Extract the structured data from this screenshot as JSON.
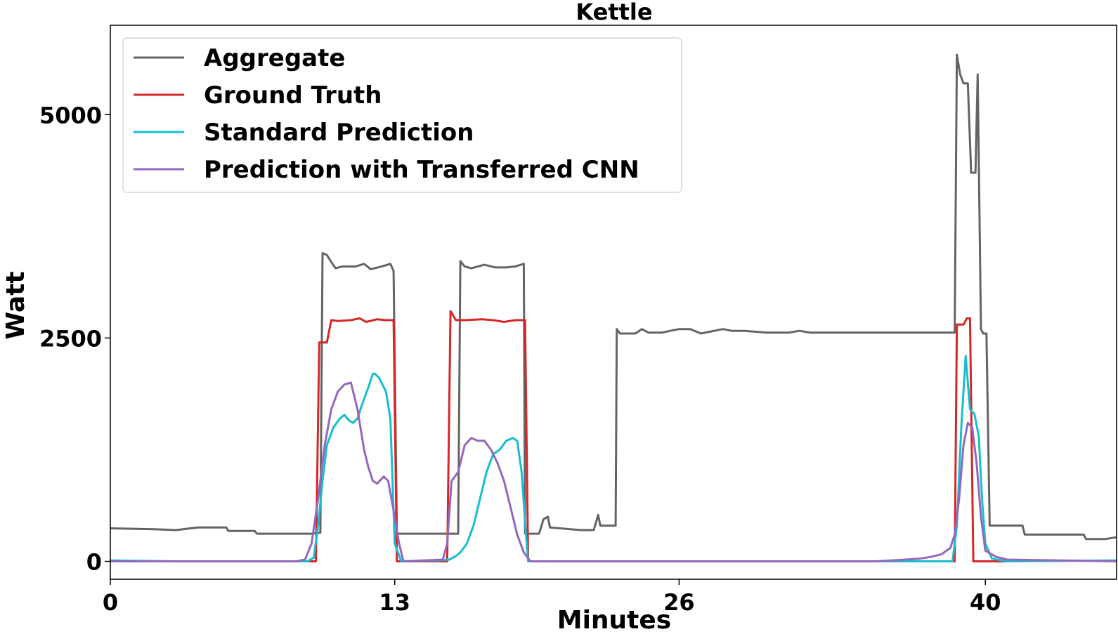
{
  "chart_data": {
    "type": "line",
    "title": "Kettle",
    "xlabel": "Minutes",
    "ylabel": "Watt",
    "xlim": [
      0,
      46
    ],
    "ylim": [
      -200,
      6000
    ],
    "xticks": [
      0,
      13,
      26,
      40
    ],
    "yticks": [
      0,
      2500,
      5000
    ],
    "legend_position": "top-left",
    "grid": false,
    "series": [
      {
        "name": "Aggregate",
        "color": "#646464",
        "points": [
          [
            0,
            370
          ],
          [
            2,
            360
          ],
          [
            3,
            350
          ],
          [
            4,
            380
          ],
          [
            5.3,
            380
          ],
          [
            5.4,
            340
          ],
          [
            6.6,
            340
          ],
          [
            6.7,
            310
          ],
          [
            9.2,
            310
          ],
          [
            9.6,
            320
          ],
          [
            9.7,
            3450
          ],
          [
            9.9,
            3430
          ],
          [
            10.1,
            3350
          ],
          [
            10.3,
            3280
          ],
          [
            10.6,
            3300
          ],
          [
            11.2,
            3300
          ],
          [
            11.6,
            3330
          ],
          [
            11.9,
            3270
          ],
          [
            12.4,
            3300
          ],
          [
            12.8,
            3330
          ],
          [
            12.95,
            3250
          ],
          [
            13.1,
            310
          ],
          [
            15.2,
            310
          ],
          [
            15.9,
            310
          ],
          [
            16.0,
            3360
          ],
          [
            16.2,
            3300
          ],
          [
            16.5,
            3280
          ],
          [
            17.1,
            3320
          ],
          [
            17.6,
            3290
          ],
          [
            18.1,
            3290
          ],
          [
            18.5,
            3300
          ],
          [
            18.9,
            3330
          ],
          [
            18.96,
            310
          ],
          [
            19.6,
            310
          ],
          [
            19.8,
            470
          ],
          [
            20.0,
            500
          ],
          [
            20.1,
            380
          ],
          [
            21.5,
            350
          ],
          [
            22.1,
            350
          ],
          [
            22.3,
            520
          ],
          [
            22.4,
            400
          ],
          [
            23.1,
            400
          ],
          [
            23.15,
            2600
          ],
          [
            23.3,
            2550
          ],
          [
            24.0,
            2550
          ],
          [
            24.3,
            2600
          ],
          [
            24.6,
            2560
          ],
          [
            25.2,
            2560
          ],
          [
            25.6,
            2580
          ],
          [
            26.0,
            2600
          ],
          [
            26.5,
            2600
          ],
          [
            27.0,
            2550
          ],
          [
            28.0,
            2600
          ],
          [
            28.4,
            2580
          ],
          [
            29.0,
            2580
          ],
          [
            30.0,
            2560
          ],
          [
            31.0,
            2560
          ],
          [
            31.5,
            2580
          ],
          [
            32.0,
            2560
          ],
          [
            33.0,
            2560
          ],
          [
            34.0,
            2560
          ],
          [
            35.0,
            2560
          ],
          [
            36.0,
            2560
          ],
          [
            37.0,
            2560
          ],
          [
            37.8,
            2560
          ],
          [
            38.6,
            2560
          ],
          [
            38.7,
            5670
          ],
          [
            38.85,
            5450
          ],
          [
            39.0,
            5350
          ],
          [
            39.2,
            5350
          ],
          [
            39.35,
            4350
          ],
          [
            39.55,
            4350
          ],
          [
            39.65,
            5450
          ],
          [
            39.8,
            2600
          ],
          [
            39.9,
            2550
          ],
          [
            40.05,
            2550
          ],
          [
            40.2,
            400
          ],
          [
            41.0,
            400
          ],
          [
            41.7,
            400
          ],
          [
            41.8,
            300
          ],
          [
            43.0,
            300
          ],
          [
            44.0,
            300
          ],
          [
            44.5,
            300
          ],
          [
            44.6,
            250
          ],
          [
            45.5,
            250
          ],
          [
            46.0,
            270
          ]
        ]
      },
      {
        "name": "Ground Truth",
        "color": "#d62728",
        "points": [
          [
            0,
            0
          ],
          [
            9.4,
            0
          ],
          [
            9.55,
            2450
          ],
          [
            9.9,
            2450
          ],
          [
            10.1,
            2700
          ],
          [
            10.4,
            2690
          ],
          [
            11.0,
            2700
          ],
          [
            11.4,
            2720
          ],
          [
            11.7,
            2680
          ],
          [
            12.2,
            2710
          ],
          [
            12.6,
            2700
          ],
          [
            12.95,
            2700
          ],
          [
            13.1,
            0
          ],
          [
            15.4,
            0
          ],
          [
            15.55,
            2800
          ],
          [
            15.8,
            2700
          ],
          [
            16.2,
            2700
          ],
          [
            17.0,
            2710
          ],
          [
            17.5,
            2700
          ],
          [
            18.0,
            2680
          ],
          [
            18.5,
            2700
          ],
          [
            18.96,
            2700
          ],
          [
            19.1,
            0
          ],
          [
            38.6,
            0
          ],
          [
            38.7,
            2650
          ],
          [
            39.0,
            2650
          ],
          [
            39.15,
            2720
          ],
          [
            39.3,
            2720
          ],
          [
            39.45,
            0
          ],
          [
            41.5,
            0
          ]
        ]
      },
      {
        "name": "Standard Prediction",
        "color": "#17becf",
        "points": [
          [
            0,
            10
          ],
          [
            3,
            0
          ],
          [
            6,
            0
          ],
          [
            8,
            0
          ],
          [
            9.0,
            0
          ],
          [
            9.3,
            40
          ],
          [
            9.5,
            400
          ],
          [
            9.7,
            900
          ],
          [
            9.9,
            1300
          ],
          [
            10.2,
            1500
          ],
          [
            10.5,
            1600
          ],
          [
            10.7,
            1640
          ],
          [
            10.9,
            1580
          ],
          [
            11.1,
            1550
          ],
          [
            11.3,
            1600
          ],
          [
            11.5,
            1750
          ],
          [
            11.8,
            1950
          ],
          [
            12.0,
            2100
          ],
          [
            12.1,
            2100
          ],
          [
            12.3,
            2050
          ],
          [
            12.6,
            1900
          ],
          [
            12.8,
            1600
          ],
          [
            13.0,
            200
          ],
          [
            13.3,
            0
          ],
          [
            15.0,
            10
          ],
          [
            15.5,
            20
          ],
          [
            15.8,
            60
          ],
          [
            16.0,
            100
          ],
          [
            16.3,
            200
          ],
          [
            16.6,
            400
          ],
          [
            16.9,
            700
          ],
          [
            17.2,
            1000
          ],
          [
            17.5,
            1200
          ],
          [
            17.8,
            1250
          ],
          [
            18.1,
            1350
          ],
          [
            18.4,
            1380
          ],
          [
            18.6,
            1350
          ],
          [
            18.8,
            1000
          ],
          [
            19.0,
            300
          ],
          [
            19.1,
            0
          ],
          [
            30,
            0
          ],
          [
            37.5,
            0
          ],
          [
            38.5,
            0
          ],
          [
            38.7,
            400
          ],
          [
            38.9,
            1500
          ],
          [
            39.1,
            2300
          ],
          [
            39.3,
            1700
          ],
          [
            39.5,
            1650
          ],
          [
            39.7,
            1400
          ],
          [
            39.85,
            700
          ],
          [
            40.0,
            200
          ],
          [
            40.3,
            30
          ],
          [
            41,
            0
          ],
          [
            46,
            10
          ]
        ]
      },
      {
        "name": "Prediction with Transferred CNN",
        "color": "#9467bd",
        "points": [
          [
            0,
            0
          ],
          [
            8.5,
            0
          ],
          [
            8.9,
            20
          ],
          [
            9.2,
            200
          ],
          [
            9.5,
            700
          ],
          [
            9.8,
            1300
          ],
          [
            10.1,
            1700
          ],
          [
            10.4,
            1900
          ],
          [
            10.7,
            1980
          ],
          [
            11.0,
            2000
          ],
          [
            11.3,
            1700
          ],
          [
            11.6,
            1250
          ],
          [
            11.8,
            1050
          ],
          [
            12.0,
            900
          ],
          [
            12.2,
            870
          ],
          [
            12.5,
            950
          ],
          [
            12.7,
            900
          ],
          [
            13.0,
            500
          ],
          [
            13.2,
            200
          ],
          [
            13.4,
            0
          ],
          [
            15.2,
            20
          ],
          [
            15.4,
            200
          ],
          [
            15.6,
            900
          ],
          [
            15.9,
            1000
          ],
          [
            16.2,
            1300
          ],
          [
            16.5,
            1380
          ],
          [
            16.8,
            1350
          ],
          [
            17.1,
            1350
          ],
          [
            17.4,
            1250
          ],
          [
            17.7,
            1100
          ],
          [
            18.0,
            900
          ],
          [
            18.3,
            600
          ],
          [
            18.6,
            300
          ],
          [
            18.9,
            100
          ],
          [
            19.2,
            0
          ],
          [
            30,
            0
          ],
          [
            35.0,
            0
          ],
          [
            37.0,
            30
          ],
          [
            37.5,
            50
          ],
          [
            38.0,
            80
          ],
          [
            38.4,
            150
          ],
          [
            38.6,
            300
          ],
          [
            38.8,
            700
          ],
          [
            39.0,
            1300
          ],
          [
            39.2,
            1550
          ],
          [
            39.4,
            1500
          ],
          [
            39.6,
            1100
          ],
          [
            39.8,
            500
          ],
          [
            40.0,
            120
          ],
          [
            40.5,
            50
          ],
          [
            41.0,
            20
          ],
          [
            46,
            0
          ]
        ]
      }
    ]
  }
}
